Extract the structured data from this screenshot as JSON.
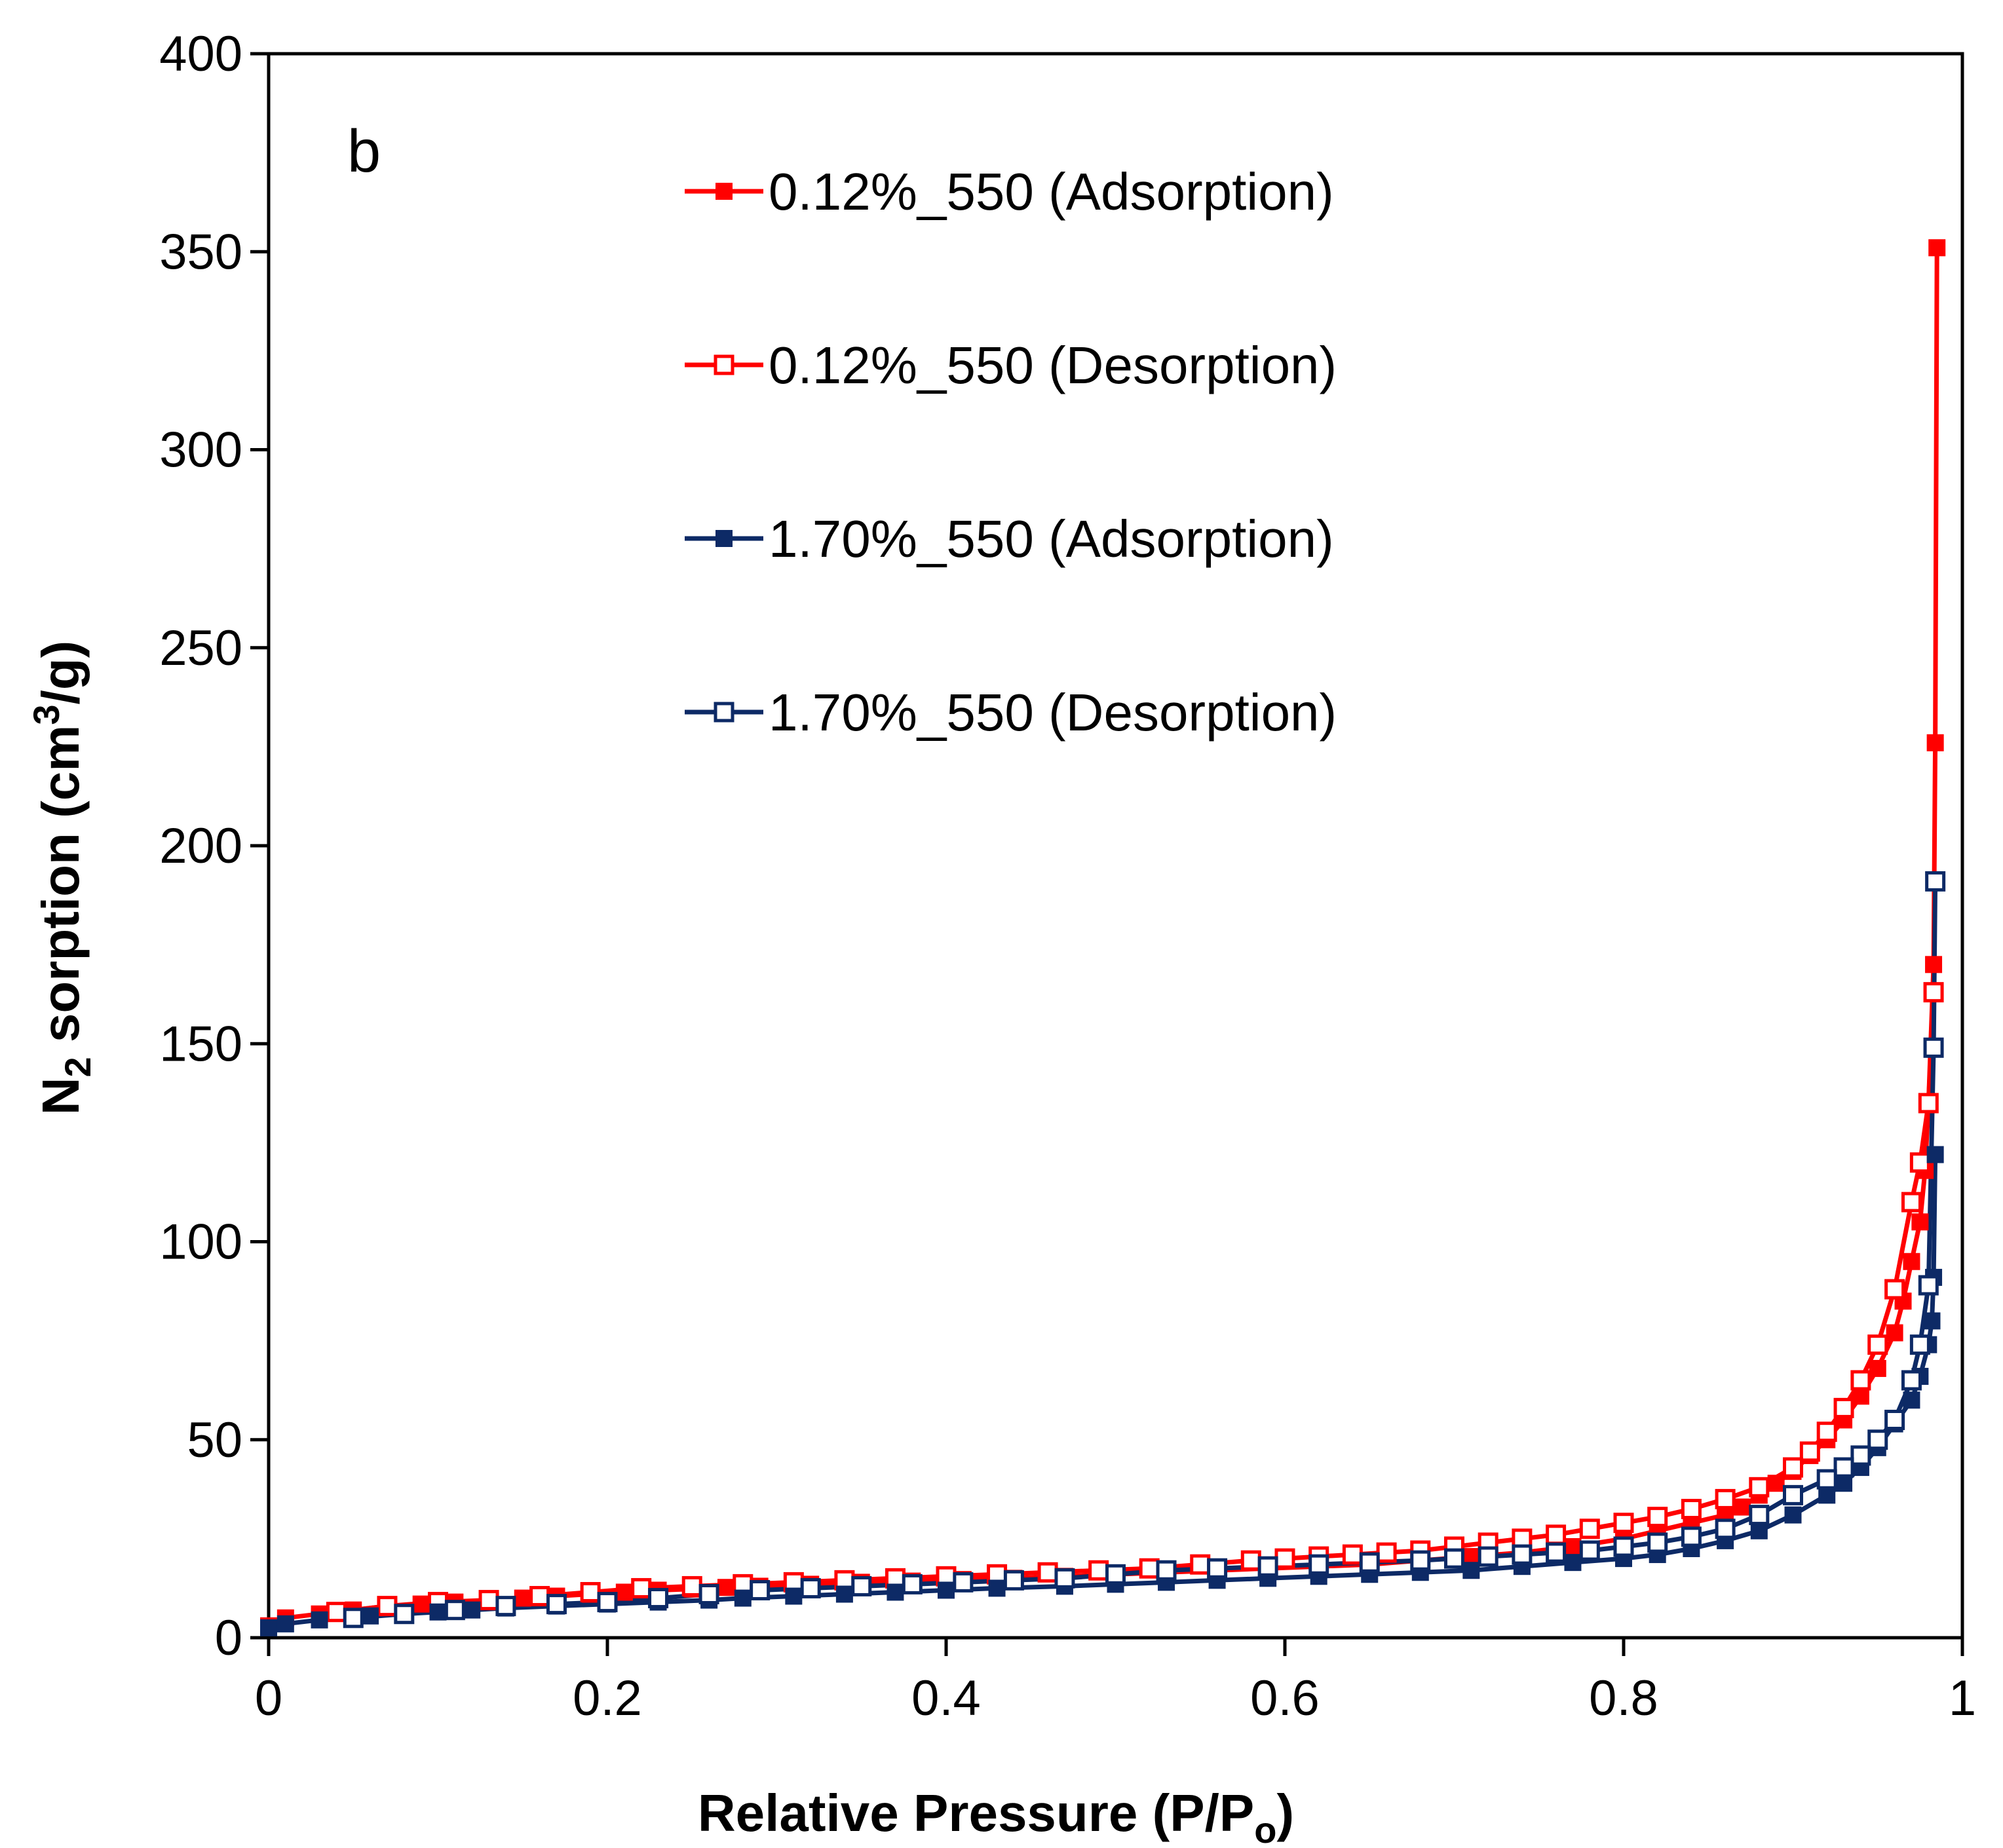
{
  "chart_data": {
    "type": "scatter",
    "panel_label": "b",
    "xlabel_main": "Relative Pressure (P/P",
    "xlabel_sub": "o",
    "xlabel_end": ")",
    "ylabel_pre": "N",
    "ylabel_sub": "2",
    "ylabel_mid": " sorption (cm",
    "ylabel_sup": "3",
    "ylabel_end": "/g)",
    "xlim": [
      0,
      1
    ],
    "ylim": [
      0,
      400
    ],
    "xticks": [
      0,
      0.2,
      0.4,
      0.6,
      0.8,
      1
    ],
    "xtick_labels": [
      "0",
      "0.2",
      "0.4",
      "0.6",
      "0.8",
      "1"
    ],
    "yticks": [
      0,
      50,
      100,
      150,
      200,
      250,
      300,
      350,
      400
    ],
    "ytick_labels": [
      "0",
      "50",
      "100",
      "150",
      "200",
      "250",
      "300",
      "350",
      "400"
    ],
    "legend_position": "top-center",
    "series": [
      {
        "name": "0.12%_550 (Adsorption)",
        "color": "#ff0000",
        "marker": "filled-square",
        "x": [
          0.0,
          0.01,
          0.03,
          0.05,
          0.07,
          0.09,
          0.11,
          0.13,
          0.15,
          0.17,
          0.19,
          0.21,
          0.23,
          0.25,
          0.27,
          0.29,
          0.32,
          0.35,
          0.38,
          0.41,
          0.44,
          0.47,
          0.5,
          0.53,
          0.56,
          0.59,
          0.62,
          0.65,
          0.68,
          0.71,
          0.74,
          0.77,
          0.8,
          0.82,
          0.84,
          0.86,
          0.87,
          0.88,
          0.89,
          0.9,
          0.91,
          0.92,
          0.93,
          0.94,
          0.95,
          0.96,
          0.965,
          0.97,
          0.975,
          0.978,
          0.98,
          0.983,
          0.984,
          0.985
        ],
        "y": [
          3,
          5,
          6,
          7,
          8,
          8.5,
          9,
          9.5,
          10,
          10.5,
          11,
          11.5,
          12,
          12.3,
          12.7,
          13,
          13.5,
          14,
          14.3,
          14.7,
          15,
          15.5,
          16,
          16.5,
          17,
          17.5,
          18,
          18.5,
          19.5,
          20.5,
          21.5,
          23,
          25,
          27,
          29,
          31,
          33,
          36,
          39,
          42,
          46,
          50,
          55,
          61,
          68,
          77,
          85,
          95,
          105,
          118,
          135,
          170,
          226,
          351
        ]
      },
      {
        "name": "0.12%_550 (Desorption)",
        "color": "#ff0000",
        "marker": "open-square",
        "x": [
          0.983,
          0.98,
          0.975,
          0.97,
          0.96,
          0.95,
          0.94,
          0.93,
          0.92,
          0.91,
          0.9,
          0.88,
          0.86,
          0.84,
          0.82,
          0.8,
          0.78,
          0.76,
          0.74,
          0.72,
          0.7,
          0.68,
          0.66,
          0.64,
          0.62,
          0.6,
          0.58,
          0.55,
          0.52,
          0.49,
          0.46,
          0.43,
          0.4,
          0.37,
          0.34,
          0.31,
          0.28,
          0.25,
          0.22,
          0.19,
          0.16,
          0.13,
          0.1,
          0.07,
          0.04
        ],
        "y": [
          163,
          135,
          120,
          110,
          88,
          74,
          65,
          58,
          52,
          47,
          43,
          38,
          35,
          32.5,
          30.5,
          29,
          27.5,
          26,
          25,
          24,
          23,
          22,
          21.5,
          21,
          20.5,
          20,
          19.5,
          18.5,
          17.5,
          17,
          16.5,
          16,
          15.5,
          15,
          14.5,
          14,
          13.5,
          13,
          12.5,
          11.5,
          10.5,
          9.5,
          9,
          8,
          6.5
        ]
      },
      {
        "name": "1.70%_550 (Adsorption)",
        "color": "#0d2a66",
        "marker": "filled-square",
        "x": [
          0.0,
          0.01,
          0.03,
          0.06,
          0.08,
          0.1,
          0.12,
          0.14,
          0.17,
          0.2,
          0.23,
          0.26,
          0.28,
          0.31,
          0.34,
          0.37,
          0.4,
          0.43,
          0.47,
          0.5,
          0.53,
          0.56,
          0.59,
          0.62,
          0.65,
          0.68,
          0.71,
          0.74,
          0.77,
          0.8,
          0.82,
          0.84,
          0.86,
          0.88,
          0.9,
          0.92,
          0.93,
          0.94,
          0.95,
          0.96,
          0.97,
          0.975,
          0.98,
          0.982,
          0.983,
          0.984
        ],
        "y": [
          2.5,
          3.5,
          4.5,
          5.5,
          6,
          6.5,
          7,
          7.5,
          8,
          8.5,
          9,
          9.5,
          10,
          10.5,
          11,
          11.5,
          12,
          12.5,
          13,
          13.5,
          14,
          14.5,
          15,
          15.5,
          16,
          16.5,
          17,
          18,
          19,
          20,
          21,
          22.5,
          24.5,
          27,
          31,
          36,
          39,
          43,
          48,
          54,
          60,
          66,
          74,
          80,
          91,
          122
        ]
      },
      {
        "name": "1.70%_550 (Desorption)",
        "color": "#0d2a66",
        "marker": "open-square",
        "x": [
          0.984,
          0.983,
          0.98,
          0.975,
          0.97,
          0.96,
          0.95,
          0.94,
          0.93,
          0.92,
          0.9,
          0.88,
          0.86,
          0.84,
          0.82,
          0.8,
          0.78,
          0.76,
          0.74,
          0.72,
          0.7,
          0.68,
          0.65,
          0.62,
          0.59,
          0.56,
          0.53,
          0.5,
          0.47,
          0.44,
          0.41,
          0.38,
          0.35,
          0.32,
          0.29,
          0.26,
          0.23,
          0.2,
          0.17,
          0.14,
          0.11,
          0.08,
          0.05
        ],
        "y": [
          191,
          149,
          89,
          74,
          65,
          55,
          50,
          46,
          43,
          40,
          36,
          31,
          27.5,
          25.5,
          24,
          23,
          22,
          21.5,
          21,
          20.5,
          20,
          19.5,
          19,
          18.5,
          18,
          17.5,
          17,
          16,
          15,
          14.5,
          14,
          13.5,
          13,
          12.5,
          12,
          11,
          10,
          9,
          8.5,
          8,
          7,
          6,
          5
        ]
      }
    ]
  }
}
